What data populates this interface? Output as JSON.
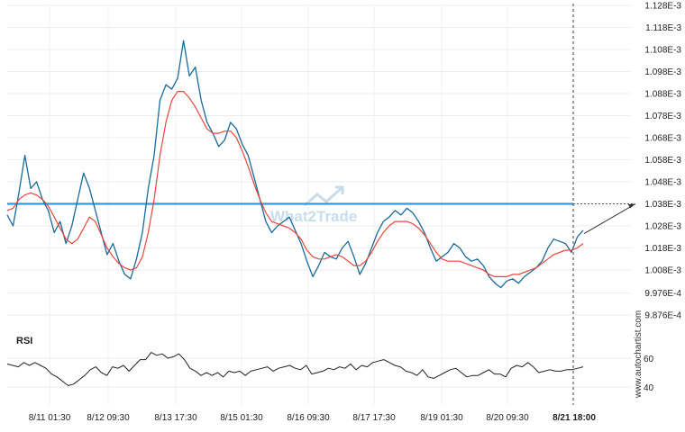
{
  "chart_data": [
    {
      "type": "line",
      "y_ticks": [
        "1.128E-3",
        "1.118E-3",
        "1.108E-3",
        "1.098E-3",
        "1.088E-3",
        "1.078E-3",
        "1.068E-3",
        "1.058E-3",
        "1.048E-3",
        "1.038E-3",
        "1.028E-3",
        "1.018E-3",
        "1.008E-3",
        "9.976E-4",
        "9.876E-4"
      ],
      "y_values": [
        0.001128,
        0.001118,
        0.001108,
        0.001098,
        0.001088,
        0.001078,
        0.001068,
        0.001058,
        0.001048,
        0.001038,
        0.001028,
        0.001018,
        0.001008,
        0.0009976,
        0.0009876
      ],
      "ylim": [
        0.0009876,
        0.001128
      ],
      "x_ticks": [
        "8/11 01:30",
        "8/12 09:30",
        "8/13 17:30",
        "8/15 01:30",
        "8/16 09:30",
        "8/17 17:30",
        "8/19 01:30",
        "8/20 09:30",
        "8/21 18:00"
      ],
      "x_tick_bold_index": 8,
      "grid": true,
      "resistance_level": 0.001038,
      "projection": {
        "from": 0.0010245,
        "to": 0.001038
      },
      "series": [
        {
          "color": "#1a6a9a",
          "style": "price",
          "values": [
            0.001033,
            0.001028,
            0.001043,
            0.00106,
            0.001045,
            0.001048,
            0.00104,
            0.001035,
            0.001025,
            0.00103,
            0.00102,
            0.001028,
            0.00104,
            0.001052,
            0.001045,
            0.001035,
            0.001025,
            0.001015,
            0.00102,
            0.001012,
            0.001006,
            0.001004,
            0.001013,
            0.001025,
            0.001045,
            0.00106,
            0.001085,
            0.001092,
            0.00109,
            0.001095,
            0.001112,
            0.001096,
            0.0011,
            0.001085,
            0.001075,
            0.00107,
            0.001064,
            0.001067,
            0.001075,
            0.001072,
            0.001065,
            0.00106,
            0.00105,
            0.00104,
            0.00103,
            0.001025,
            0.001028,
            0.00103,
            0.001032,
            0.001026,
            0.00102,
            0.001012,
            0.001005,
            0.00101,
            0.001016,
            0.001014,
            0.001013,
            0.001018,
            0.001021,
            0.001014,
            0.001006,
            0.001011,
            0.001018,
            0.001025,
            0.00103,
            0.001032,
            0.001035,
            0.001033,
            0.001036,
            0.001034,
            0.00103,
            0.001025,
            0.001018,
            0.001012,
            0.001014,
            0.001016,
            0.00102,
            0.001018,
            0.001014,
            0.001012,
            0.001013,
            0.00101,
            0.001005,
            0.001002,
            0.001,
            0.001003,
            0.001004,
            0.001002,
            0.001005,
            0.001007,
            0.001009,
            0.001012,
            0.001018,
            0.001022,
            0.001021,
            0.00102,
            0.001016,
            0.001023,
            0.001026
          ]
        },
        {
          "color": "#e8463c",
          "style": "moving-average",
          "values": [
            0.001035,
            0.001036,
            0.00104,
            0.001042,
            0.001043,
            0.001042,
            0.00104,
            0.001037,
            0.001032,
            0.001027,
            0.001022,
            0.00102,
            0.001022,
            0.001027,
            0.001032,
            0.00103,
            0.001024,
            0.001018,
            0.001014,
            0.001011,
            0.001009,
            0.001008,
            0.001009,
            0.001014,
            0.001025,
            0.00104,
            0.00106,
            0.001075,
            0.001085,
            0.001089,
            0.001089,
            0.001086,
            0.001082,
            0.001077,
            0.001072,
            0.00107,
            0.00107,
            0.001071,
            0.001071,
            0.001068,
            0.001062,
            0.001055,
            0.001047,
            0.00104,
            0.001034,
            0.00103,
            0.001029,
            0.001028,
            0.001027,
            0.001025,
            0.001022,
            0.001017,
            0.001014,
            0.001013,
            0.001013,
            0.001014,
            0.001015,
            0.001014,
            0.001012,
            0.00101,
            0.00101,
            0.001012,
            0.001016,
            0.001021,
            0.001025,
            0.001028,
            0.00103,
            0.00103,
            0.00103,
            0.001029,
            0.001027,
            0.001024,
            0.00102,
            0.001016,
            0.001013,
            0.001012,
            0.001012,
            0.001012,
            0.001011,
            0.00101,
            0.001009,
            0.001008,
            0.001006,
            0.001005,
            0.001005,
            0.001005,
            0.001006,
            0.001006,
            0.001007,
            0.001008,
            0.001009,
            0.001011,
            0.001013,
            0.001015,
            0.001016,
            0.001017,
            0.001017,
            0.001018,
            0.00102
          ]
        }
      ]
    },
    {
      "type": "line",
      "title": "RSI",
      "y_ticks": [
        "60",
        "40"
      ],
      "y_values": [
        60,
        40
      ],
      "ylim": [
        37,
        67
      ],
      "series": [
        {
          "color": "#222222",
          "values": [
            56,
            55,
            54,
            57,
            55,
            57,
            55,
            53,
            49,
            47,
            44,
            41,
            42,
            45,
            48,
            52,
            54,
            50,
            48,
            54,
            53,
            55,
            51,
            55,
            59,
            59,
            64,
            62,
            63,
            60,
            61,
            63,
            59,
            53,
            51,
            48,
            50,
            48,
            50,
            47,
            51,
            50,
            51,
            48,
            51,
            52,
            53,
            54,
            51,
            53,
            54,
            55,
            53,
            52,
            55,
            49,
            50,
            51,
            53,
            52,
            54,
            53,
            56,
            52,
            55,
            54,
            57,
            58,
            59,
            57,
            55,
            54,
            51,
            50,
            48,
            52,
            47,
            46,
            48,
            50,
            52,
            53,
            50,
            47,
            48,
            48,
            50,
            52,
            49,
            49,
            47,
            53,
            55,
            54,
            57,
            54,
            50,
            51,
            52,
            51,
            51,
            52,
            52,
            53,
            54
          ]
        }
      ]
    }
  ],
  "watermark": "What2Trade",
  "side_credit": "www.autochartist.com"
}
